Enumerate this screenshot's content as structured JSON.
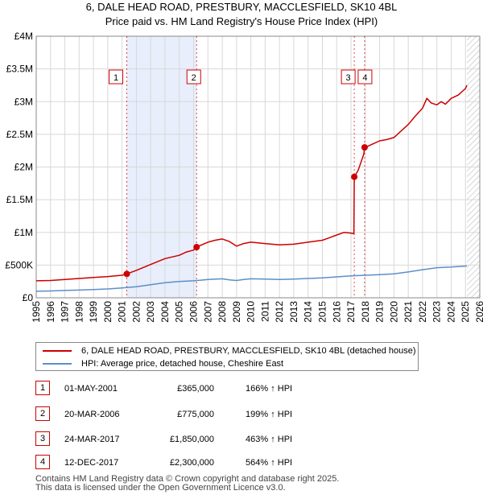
{
  "title_line1": "6, DALE HEAD ROAD, PRESTBURY, MACCLESFIELD, SK10 4BL",
  "title_line2": "Price paid vs. HM Land Registry's House Price Index (HPI)",
  "colors": {
    "property": "#cc0000",
    "hpi": "#5b8fc9",
    "shade": "#e8eefb",
    "grid": "#d8d8d8"
  },
  "legend": {
    "property_label": "6, DALE HEAD ROAD, PRESTBURY, MACCLESFIELD, SK10 4BL (detached house)",
    "hpi_label": "HPI: Average price, detached house, Cheshire East"
  },
  "sales": [
    {
      "id": "1",
      "date": "01-MAY-2001",
      "price": "£365,000",
      "hpi_change": "166% ↑ HPI"
    },
    {
      "id": "2",
      "date": "20-MAR-2006",
      "price": "£775,000",
      "hpi_change": "199% ↑ HPI"
    },
    {
      "id": "3",
      "date": "24-MAR-2017",
      "price": "£1,850,000",
      "hpi_change": "463% ↑ HPI"
    },
    {
      "id": "4",
      "date": "12-DEC-2017",
      "price": "£2,300,000",
      "hpi_change": "564% ↑ HPI"
    }
  ],
  "footer_line1": "Contains HM Land Registry data © Crown copyright and database right 2025.",
  "footer_line2": "This data is licensed under the Open Government Licence v3.0.",
  "chart_data": {
    "type": "line",
    "title": "6, DALE HEAD ROAD, PRESTBURY, MACCLESFIELD, SK10 4BL — Price paid vs. HM Land Registry's House Price Index (HPI)",
    "xlabel": "",
    "ylabel": "",
    "xlim": [
      1995,
      2026
    ],
    "ylim": [
      0,
      4000000
    ],
    "x_ticks": [
      1995,
      1996,
      1997,
      1998,
      1999,
      2000,
      2001,
      2002,
      2003,
      2004,
      2005,
      2006,
      2007,
      2008,
      2009,
      2010,
      2011,
      2012,
      2013,
      2014,
      2015,
      2016,
      2017,
      2018,
      2019,
      2020,
      2021,
      2022,
      2023,
      2024,
      2025,
      2026
    ],
    "y_ticks": [
      {
        "value": 0,
        "label": "£0"
      },
      {
        "value": 500000,
        "label": "£500K"
      },
      {
        "value": 1000000,
        "label": "£1M"
      },
      {
        "value": 1500000,
        "label": "£1.5M"
      },
      {
        "value": 2000000,
        "label": "£2M"
      },
      {
        "value": 2500000,
        "label": "£2.5M"
      },
      {
        "value": 3000000,
        "label": "£3M"
      },
      {
        "value": 3500000,
        "label": "£3.5M"
      },
      {
        "value": 4000000,
        "label": "£4M"
      }
    ],
    "grid": true,
    "shaded_range": [
      2001.33,
      2006.21
    ],
    "forecast_from": 2025.1,
    "sale_markers": [
      {
        "id": "1",
        "x": 2001.33,
        "y": 365000
      },
      {
        "id": "2",
        "x": 2006.21,
        "y": 775000
      },
      {
        "id": "3",
        "x": 2017.23,
        "y": 1850000
      },
      {
        "id": "4",
        "x": 2017.95,
        "y": 2300000
      }
    ],
    "series": [
      {
        "name": "6, DALE HEAD ROAD, PRESTBURY, MACCLESFIELD, SK10 4BL (detached house)",
        "x": [
          1995,
          1996,
          1997,
          1998,
          1999,
          2000,
          2001,
          2001.33,
          2002,
          2003,
          2004,
          2005,
          2005.5,
          2006,
          2006.21,
          2007,
          2007.5,
          2008,
          2008.5,
          2009,
          2009.5,
          2010,
          2011,
          2012,
          2013,
          2014,
          2015,
          2015.5,
          2016,
          2016.5,
          2017,
          2017.2,
          2017.23,
          2017.5,
          2017.9,
          2017.95,
          2018,
          2018.5,
          2019,
          2019.5,
          2020,
          2020.5,
          2021,
          2021.5,
          2022,
          2022.3,
          2022.6,
          2023,
          2023.3,
          2023.6,
          2024,
          2024.5,
          2025,
          2025.1
        ],
        "y": [
          260000,
          265000,
          280000,
          295000,
          310000,
          325000,
          345000,
          365000,
          420000,
          510000,
          600000,
          650000,
          700000,
          730000,
          775000,
          850000,
          880000,
          900000,
          860000,
          790000,
          830000,
          850000,
          830000,
          810000,
          820000,
          850000,
          880000,
          920000,
          960000,
          1000000,
          990000,
          980000,
          1850000,
          1950000,
          2200000,
          2300000,
          2300000,
          2350000,
          2400000,
          2420000,
          2450000,
          2550000,
          2650000,
          2780000,
          2900000,
          3050000,
          2980000,
          2950000,
          3000000,
          2960000,
          3050000,
          3100000,
          3200000,
          3250000
        ]
      },
      {
        "name": "HPI: Average price, detached house, Cheshire East",
        "x": [
          1995,
          1996,
          1997,
          1998,
          1999,
          2000,
          2001,
          2002,
          2003,
          2004,
          2005,
          2006,
          2007,
          2008,
          2008.5,
          2009,
          2009.5,
          2010,
          2011,
          2012,
          2013,
          2014,
          2015,
          2016,
          2017,
          2018,
          2019,
          2020,
          2021,
          2022,
          2023,
          2024,
          2025,
          2025.1
        ],
        "y": [
          100000,
          105000,
          112000,
          118000,
          125000,
          135000,
          150000,
          170000,
          200000,
          230000,
          250000,
          260000,
          280000,
          290000,
          275000,
          265000,
          280000,
          290000,
          285000,
          280000,
          285000,
          295000,
          305000,
          320000,
          335000,
          345000,
          355000,
          365000,
          395000,
          430000,
          460000,
          470000,
          485000,
          490000
        ]
      }
    ]
  }
}
